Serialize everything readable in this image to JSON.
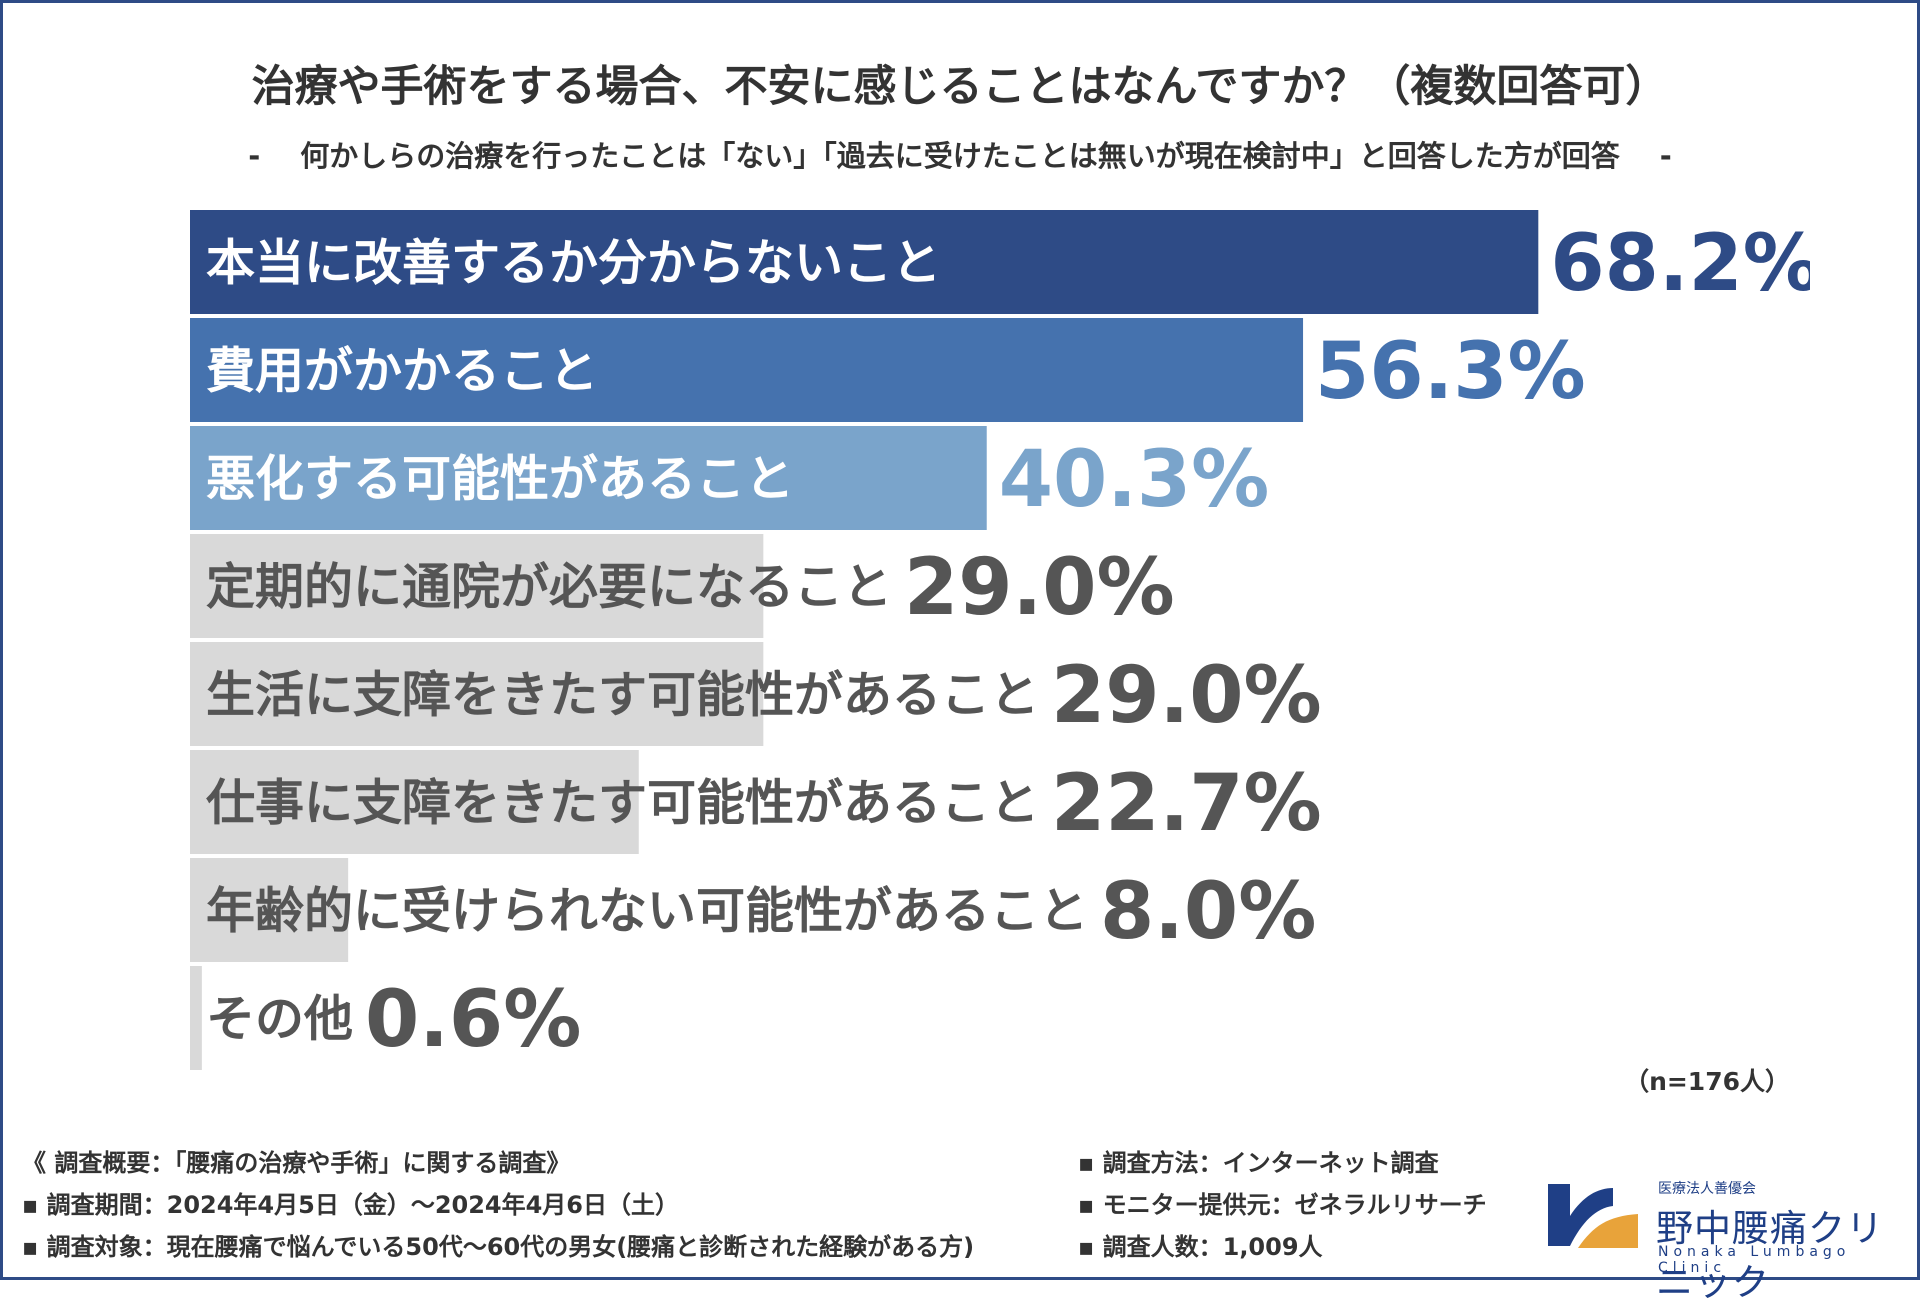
{
  "header": {
    "title": "治療や手術をする場合、不安に感じることはなんですか？（複数回答可）",
    "subtitle": "何かしらの治療を行ったことは「ない」「過去に受けたことは無いが現在検討中」と回答した方が回答",
    "dash": "-"
  },
  "chart_data": {
    "type": "bar",
    "orientation": "horizontal",
    "categories": [
      "本当に改善するか分からないこと",
      "費用がかかること",
      "悪化する可能性があること",
      "定期的に通院が必要になること",
      "生活に支障をきたす可能性があること",
      "仕事に支障をきたす可能性があること",
      "年齢的に受けられない可能性があること",
      "その他"
    ],
    "values": [
      68.2,
      56.3,
      40.3,
      29.0,
      29.0,
      22.7,
      8.0,
      0.6
    ],
    "value_labels": [
      "68.2%",
      "56.3%",
      "40.3%",
      "29.0%",
      "29.0%",
      "22.7%",
      "8.0%",
      "0.6%"
    ],
    "xlim": [
      0,
      100
    ],
    "grid": false,
    "bar_colors": [
      "#2e4b86",
      "#4572ae",
      "#7aa4cb",
      "#d9d9d9",
      "#d9d9d9",
      "#d9d9d9",
      "#d9d9d9",
      "#d9d9d9"
    ],
    "label_colors": [
      "#ffffff",
      "#ffffff",
      "#ffffff",
      "#555555",
      "#555555",
      "#555555",
      "#555555",
      "#555555"
    ],
    "value_colors": [
      "#2e4b86",
      "#4572ae",
      "#7aa4cb",
      "#555555",
      "#555555",
      "#555555",
      "#555555",
      "#555555"
    ]
  },
  "note": "（n=176人）",
  "survey": {
    "left": [
      "《 調査概要：「腰痛の治療や手術」に関する調査》",
      "▪ 調査期間：2024年4月5日（金）～2024年4月6日（土）",
      "▪ 調査対象：現在腰痛で悩んでいる50代～60代の男女(腰痛と診断された経験がある方)"
    ],
    "right": [
      "▪ 調査方法：インターネット調査",
      "▪ モニター提供元：ゼネラルリサーチ",
      "▪ 調査人数：1,009人"
    ]
  },
  "logo": {
    "small": "医療法人善優会",
    "name": "野中腰痛クリニック",
    "english": "Nonaka Lumbago Clinic"
  },
  "colors": {
    "frame": "#2e4b86",
    "logo_blue": "#1f3f86",
    "logo_orange": "#e8a33a"
  }
}
